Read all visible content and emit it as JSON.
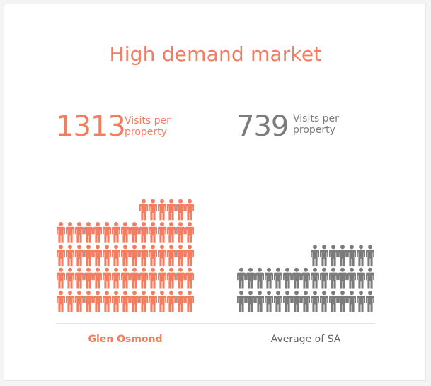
{
  "chart_data": {
    "type": "pictogram",
    "title": "High demand market",
    "value_label": "Visits per property",
    "series": [
      {
        "category": "Glen Osmond",
        "value": 1313,
        "color": "#f47c5f"
      },
      {
        "category": "Average of SA",
        "value": 739,
        "color": "#7b7b7b"
      }
    ]
  }
}
